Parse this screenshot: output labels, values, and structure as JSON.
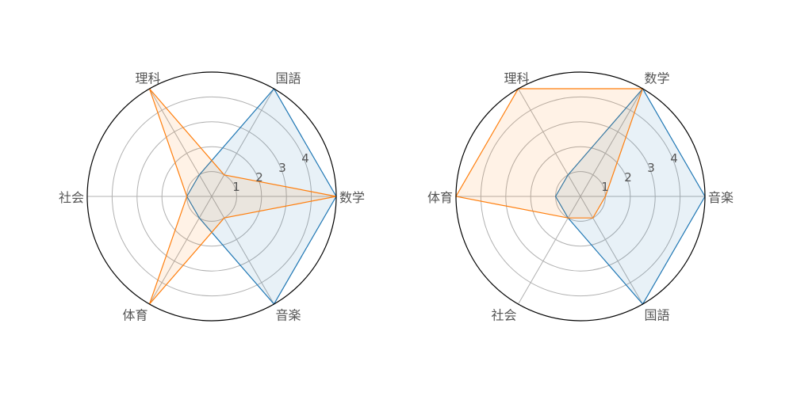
{
  "chart_data": [
    {
      "type": "radar",
      "axes": [
        "国語",
        "理科",
        "社会",
        "体育",
        "音楽",
        "数学"
      ],
      "rlim": [
        0,
        5
      ],
      "ticks": [
        "1",
        "2",
        "3",
        "4"
      ],
      "tick_values": [
        1,
        2,
        3,
        4
      ],
      "grid": true,
      "series": [
        {
          "values": [
            5,
            1,
            1,
            1,
            5,
            5
          ],
          "color": "#1f77b4"
        },
        {
          "values": [
            1,
            5,
            1,
            5,
            1,
            5
          ],
          "color": "#ff7f0e"
        }
      ]
    },
    {
      "type": "radar",
      "axes": [
        "数学",
        "理科",
        "体育",
        "社会",
        "国語",
        "音楽"
      ],
      "rlim": [
        0,
        5
      ],
      "ticks": [
        "1",
        "2",
        "3",
        "4"
      ],
      "tick_values": [
        1,
        2,
        3,
        4
      ],
      "grid": true,
      "series": [
        {
          "values": [
            5,
            1,
            1,
            1,
            5,
            5
          ],
          "color": "#1f77b4"
        },
        {
          "values": [
            5,
            5,
            5,
            1,
            1,
            1
          ],
          "color": "#ff7f0e"
        }
      ]
    }
  ]
}
